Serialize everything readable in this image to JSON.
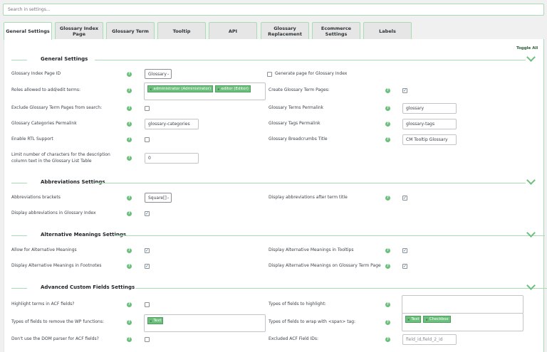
{
  "search": {
    "placeholder": "Search in settings..."
  },
  "tabs": [
    {
      "label": "General Settings",
      "active": true
    },
    {
      "label": "Glossary Index Page"
    },
    {
      "label": "Glossary Term"
    },
    {
      "label": "Tooltip"
    },
    {
      "label": "API"
    },
    {
      "label": "Glossary Replacement"
    },
    {
      "label": "Ecommerce Settings"
    },
    {
      "label": "Labels"
    }
  ],
  "toggle_all": "Toggle All",
  "icons": {
    "help": "question-circle-icon",
    "section_toggle": "chevron-down-icon",
    "tag_remove": "close-icon"
  },
  "colors": {
    "accent": "#6cbf7d",
    "border": "#a8dcb4"
  },
  "help_glyph": "?",
  "check_glyph": "✓",
  "remove_glyph": "×",
  "sections": [
    {
      "title": "General Settings",
      "rows": [
        {
          "label": "Glossary Index Page ID",
          "control": {
            "type": "select",
            "value": "Glossary"
          },
          "extra": {
            "type": "checkbox",
            "checked": false,
            "label": "Generate page for Glossary Index"
          }
        },
        {
          "label": "Roles allowed to add/edit terms:",
          "control": {
            "type": "multi",
            "tags": [
              "administrator (Administrator)",
              "editor (Editor)"
            ]
          }
        },
        {
          "label": "Exclude Glossary Term Pages from search:",
          "control": {
            "type": "checkbox",
            "checked": false
          }
        },
        {
          "label": "Glossary Categories Permalink",
          "control": {
            "type": "text",
            "value": "glossary-categories"
          }
        },
        {
          "label": "Enable RTL Support",
          "control": {
            "type": "checkbox",
            "checked": false
          }
        },
        {
          "label": "Limit number of characters for the description column text in the Glossary List Table",
          "control": {
            "type": "text",
            "value": "0"
          }
        },
        {
          "label": "Create Glossary Term Pages:",
          "control": {
            "type": "checkbox",
            "checked": true
          }
        },
        {
          "label": "Glossary Terms Permalink",
          "control": {
            "type": "text",
            "value": "glossary"
          }
        },
        {
          "label": "Glossary Tags Permalink",
          "control": {
            "type": "text",
            "value": "glossary-tags"
          }
        },
        {
          "label": "Glossary Breadcrumbs Title",
          "control": {
            "type": "text",
            "value": "CM Tooltip Glossary"
          }
        }
      ]
    },
    {
      "title": "Abbreviations Settings",
      "rows": [
        {
          "label": "Abbreviations brackets",
          "control": {
            "type": "select",
            "value": "Square[]"
          }
        },
        {
          "label": "Display abbreviations in Glossary Index",
          "control": {
            "type": "checkbox",
            "checked": true
          }
        },
        {
          "label": "Display abbreviations after term title",
          "control": {
            "type": "checkbox",
            "checked": true
          }
        }
      ]
    },
    {
      "title": "Alternative Meanings Settings",
      "rows": [
        {
          "label": "Allow for Alternative Meanings",
          "control": {
            "type": "checkbox",
            "checked": true
          }
        },
        {
          "label": "Display Alternative Meanings in Footnotes",
          "control": {
            "type": "checkbox",
            "checked": true
          }
        },
        {
          "label": "Display Alternative Meanings in Tooltips",
          "control": {
            "type": "checkbox",
            "checked": true
          }
        },
        {
          "label": "Display Alternative Meanings on Glossary Term Page",
          "control": {
            "type": "checkbox",
            "checked": true
          }
        }
      ]
    },
    {
      "title": "Advanced Custom Fields Settings",
      "rows": [
        {
          "label": "Highlight terms in ACF fields?",
          "control": {
            "type": "checkbox",
            "checked": false
          }
        },
        {
          "label": "Types of fields to remove the WP functions:",
          "control": {
            "type": "multi",
            "tags": [
              "Text"
            ]
          }
        },
        {
          "label": "Don't use the DOM parser for ACF fields?",
          "control": {
            "type": "checkbox",
            "checked": false
          }
        },
        {
          "label": "Types of fields to highlight:",
          "control": {
            "type": "multi",
            "tags": []
          }
        },
        {
          "label": "Types of fields to wrap with <span> tag:",
          "control": {
            "type": "multi",
            "tags": [
              "Text",
              "Checkbox"
            ]
          }
        },
        {
          "label": "Excluded ACF Field IDs:",
          "control": {
            "type": "text",
            "value": "",
            "placeholder": "field_id,field_2_id"
          }
        }
      ]
    }
  ]
}
